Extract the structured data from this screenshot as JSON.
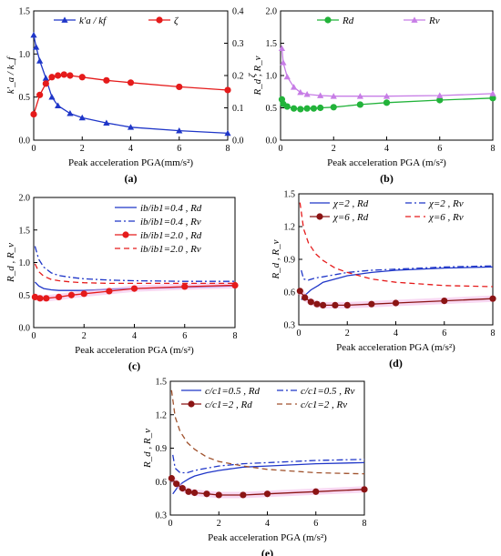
{
  "chart_data": [
    {
      "type": "line",
      "panel": "(a)",
      "xlabel": "Peak acceleration  PGA(mm/s²)",
      "ylabel": "k'_a / k_f",
      "y2label": "ζ",
      "xlim": [
        0,
        8
      ],
      "ylim": [
        0,
        1.5
      ],
      "y2lim": [
        0,
        0.4
      ],
      "xticks": [
        "0",
        "2",
        "4",
        "6",
        "8"
      ],
      "yticks": [
        "0.0",
        "0.5",
        "1.0",
        "1.5"
      ],
      "y2ticks": [
        "0.0",
        "0.1",
        "0.2",
        "0.3",
        "0.4"
      ],
      "legend_position": "top-center",
      "series": [
        {
          "name": "k'a / kf",
          "axis": "left",
          "color": "#1f36c8",
          "marker": "triangle",
          "style": "solid",
          "x": [
            0,
            0.1,
            0.25,
            0.5,
            0.75,
            1,
            1.5,
            2,
            3,
            4,
            6,
            8
          ],
          "y": [
            1.22,
            1.08,
            0.92,
            0.72,
            0.5,
            0.4,
            0.31,
            0.26,
            0.2,
            0.15,
            0.11,
            0.08
          ]
        },
        {
          "name": "ζ",
          "axis": "right",
          "color": "#e51b1b",
          "marker": "circle",
          "style": "solid",
          "x": [
            0,
            0.25,
            0.5,
            0.75,
            1,
            1.25,
            1.5,
            2,
            3,
            4,
            6,
            8
          ],
          "y": [
            0.08,
            0.14,
            0.175,
            0.195,
            0.2,
            0.203,
            0.2,
            0.195,
            0.185,
            0.178,
            0.165,
            0.155
          ]
        }
      ]
    },
    {
      "type": "line",
      "panel": "(b)",
      "xlabel": "Peak acceleration  PGA (m/s²)",
      "ylabel": "R_d , R_v",
      "xlim": [
        0,
        8
      ],
      "ylim": [
        0,
        2.0
      ],
      "xticks": [
        "0",
        "2",
        "4",
        "6",
        "8"
      ],
      "yticks": [
        "0.0",
        "0.5",
        "1.0",
        "1.5",
        "2.0"
      ],
      "legend_position": "top",
      "series": [
        {
          "name": "Rd",
          "color": "#22b33a",
          "marker": "circle",
          "style": "solid",
          "x": [
            0.05,
            0.1,
            0.25,
            0.5,
            0.75,
            1,
            1.25,
            1.5,
            2,
            3,
            4,
            6,
            8
          ],
          "y": [
            0.63,
            0.56,
            0.52,
            0.49,
            0.48,
            0.49,
            0.49,
            0.5,
            0.51,
            0.55,
            0.58,
            0.62,
            0.65
          ]
        },
        {
          "name": "Rv",
          "color": "#c77de6",
          "marker": "triangle",
          "style": "solid",
          "x": [
            0.05,
            0.1,
            0.25,
            0.5,
            0.75,
            1,
            1.5,
            2,
            3,
            4,
            6,
            8
          ],
          "y": [
            1.42,
            1.2,
            0.98,
            0.82,
            0.74,
            0.71,
            0.69,
            0.68,
            0.68,
            0.68,
            0.69,
            0.72
          ]
        }
      ]
    },
    {
      "type": "line",
      "panel": "(c)",
      "xlabel": "Peak acceleration  PGA (m/s²)",
      "ylabel": "R_d , R_v",
      "xlim": [
        0,
        8
      ],
      "ylim": [
        0,
        2.0
      ],
      "xticks": [
        "0",
        "2",
        "4",
        "6",
        "8"
      ],
      "yticks": [
        "0.0",
        "0.5",
        "1.0",
        "1.5",
        "2.0"
      ],
      "legend_position": "top-right",
      "series": [
        {
          "name": "ib/ib1=0.4 , Rd",
          "color": "#1f36c8",
          "style": "solid",
          "marker": "none",
          "x": [
            0.05,
            0.2,
            0.4,
            0.7,
            1,
            1.5,
            2,
            3,
            4,
            6,
            8
          ],
          "y": [
            0.7,
            0.64,
            0.6,
            0.58,
            0.57,
            0.57,
            0.57,
            0.59,
            0.6,
            0.62,
            0.64
          ]
        },
        {
          "name": "ib/ib1=0.4 , Rv",
          "color": "#1f36c8",
          "style": "dashdot",
          "marker": "none",
          "x": [
            0.05,
            0.2,
            0.4,
            0.7,
            1,
            1.5,
            2,
            3,
            4,
            6,
            8
          ],
          "y": [
            1.25,
            1.05,
            0.93,
            0.84,
            0.8,
            0.77,
            0.75,
            0.73,
            0.72,
            0.71,
            0.71
          ]
        },
        {
          "name": "ib/ib1=2.0 , Rd",
          "color": "#e51b1b",
          "style": "solid",
          "marker": "circle",
          "x": [
            0.05,
            0.25,
            0.5,
            1,
            1.5,
            2,
            3,
            4,
            6,
            8
          ],
          "y": [
            0.47,
            0.45,
            0.45,
            0.47,
            0.5,
            0.52,
            0.56,
            0.6,
            0.63,
            0.65
          ]
        },
        {
          "name": "ib/ib1=2.0 , Rv",
          "color": "#e51b1b",
          "style": "dashed",
          "marker": "none",
          "x": [
            0.05,
            0.2,
            0.4,
            0.7,
            1,
            1.5,
            2,
            3,
            4,
            6,
            8
          ],
          "y": [
            0.98,
            0.86,
            0.79,
            0.74,
            0.72,
            0.7,
            0.69,
            0.68,
            0.68,
            0.68,
            0.68
          ]
        }
      ]
    },
    {
      "type": "line",
      "panel": "(d)",
      "xlabel": "Peak acceleration  PGA (m/s²)",
      "ylabel": "R_d , R_v",
      "xlim": [
        0,
        8
      ],
      "ylim": [
        0.3,
        1.5
      ],
      "xticks": [
        "0",
        "2",
        "4",
        "6",
        "8"
      ],
      "yticks": [
        "0.3",
        "0.6",
        "0.9",
        "1.2",
        "1.5"
      ],
      "legend_position": "top",
      "series": [
        {
          "name": "χ=2 , Rd",
          "color": "#1f36c8",
          "style": "solid",
          "marker": "none",
          "x": [
            0.1,
            0.3,
            0.5,
            0.8,
            1,
            1.5,
            2,
            3,
            4,
            6,
            8
          ],
          "y": [
            0.53,
            0.58,
            0.62,
            0.66,
            0.69,
            0.72,
            0.75,
            0.78,
            0.8,
            0.82,
            0.83
          ]
        },
        {
          "name": "χ=2 , Rv",
          "color": "#1f36c8",
          "style": "dashdot",
          "marker": "none",
          "x": [
            0.1,
            0.2,
            0.4,
            0.7,
            1,
            1.5,
            2,
            3,
            4,
            6,
            8
          ],
          "y": [
            0.8,
            0.72,
            0.71,
            0.73,
            0.74,
            0.76,
            0.78,
            0.8,
            0.81,
            0.83,
            0.84
          ]
        },
        {
          "name": "χ=6 , Rd",
          "color": "#8b1414",
          "style": "solid",
          "marker": "circle",
          "x": [
            0.05,
            0.25,
            0.5,
            0.75,
            1,
            1.5,
            2,
            3,
            4,
            6,
            8
          ],
          "y": [
            0.61,
            0.55,
            0.51,
            0.49,
            0.48,
            0.48,
            0.48,
            0.49,
            0.5,
            0.52,
            0.54
          ]
        },
        {
          "name": "χ=6 , Rv",
          "color": "#e51b1b",
          "style": "dashed",
          "marker": "none",
          "x": [
            0.05,
            0.2,
            0.4,
            0.7,
            1,
            1.5,
            2,
            3,
            4,
            6,
            8
          ],
          "y": [
            1.42,
            1.18,
            1.05,
            0.95,
            0.89,
            0.82,
            0.78,
            0.72,
            0.69,
            0.66,
            0.65
          ]
        }
      ]
    },
    {
      "type": "line",
      "panel": "(e)",
      "xlabel": "Peak acceleration  PGA (m/s²)",
      "ylabel": "R_d , R_v",
      "xlim": [
        0,
        8
      ],
      "ylim": [
        0.3,
        1.5
      ],
      "xticks": [
        "0",
        "2",
        "4",
        "6",
        "8"
      ],
      "yticks": [
        "0.3",
        "0.6",
        "0.9",
        "1.2",
        "1.5"
      ],
      "legend_position": "top",
      "series": [
        {
          "name": "c/c1=0.5 , Rd",
          "color": "#1f36c8",
          "style": "solid",
          "marker": "none",
          "x": [
            0.1,
            0.3,
            0.5,
            0.8,
            1,
            1.5,
            2,
            3,
            4,
            6,
            8
          ],
          "y": [
            0.49,
            0.55,
            0.59,
            0.63,
            0.65,
            0.68,
            0.7,
            0.73,
            0.74,
            0.76,
            0.77
          ]
        },
        {
          "name": "c/c1=0.5 , Rv",
          "color": "#1f36c8",
          "style": "dashdot",
          "marker": "none",
          "x": [
            0.1,
            0.2,
            0.4,
            0.7,
            1,
            1.5,
            2,
            3,
            4,
            6,
            8
          ],
          "y": [
            0.84,
            0.72,
            0.68,
            0.68,
            0.7,
            0.72,
            0.74,
            0.76,
            0.77,
            0.79,
            0.8
          ]
        },
        {
          "name": "c/c1=2 , Rd",
          "color": "#8b1414",
          "style": "solid",
          "marker": "circle",
          "x": [
            0.05,
            0.25,
            0.5,
            0.75,
            1,
            1.5,
            2,
            3,
            4,
            6,
            8
          ],
          "y": [
            0.63,
            0.58,
            0.54,
            0.51,
            0.5,
            0.49,
            0.48,
            0.48,
            0.49,
            0.51,
            0.53
          ]
        },
        {
          "name": "c/c1=2 , Rv",
          "color": "#a0522d",
          "style": "dashed",
          "marker": "none",
          "x": [
            0.05,
            0.2,
            0.4,
            0.7,
            1,
            1.5,
            2,
            3,
            4,
            6,
            8
          ],
          "y": [
            1.42,
            1.18,
            1.05,
            0.95,
            0.89,
            0.82,
            0.78,
            0.74,
            0.71,
            0.68,
            0.67
          ]
        }
      ]
    }
  ]
}
